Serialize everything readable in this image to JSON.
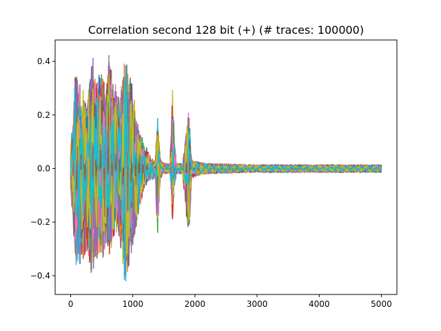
{
  "chart_data": {
    "type": "line",
    "title": "Correlation second 128 bit (+) (# traces: 100000)",
    "xlabel": "",
    "ylabel": "",
    "xlim": [
      -250,
      5250
    ],
    "ylim": [
      -0.47,
      0.48
    ],
    "x_ticks": [
      0,
      1000,
      2000,
      3000,
      4000,
      5000
    ],
    "x_tick_labels": [
      "0",
      "1000",
      "2000",
      "3000",
      "4000",
      "5000"
    ],
    "y_ticks": [
      -0.4,
      -0.2,
      0.0,
      0.2,
      0.4
    ],
    "y_tick_labels": [
      "−0.4",
      "−0.2",
      "0.0",
      "0.2",
      "0.4"
    ],
    "grid": false,
    "legend": "none",
    "n_samples": 5000,
    "series_colors": [
      "#1f77b4",
      "#ff7f0e",
      "#2ca02c",
      "#d62728",
      "#9467bd",
      "#8c564b",
      "#e377c2",
      "#7f7f7f",
      "#bcbd22",
      "#17becf"
    ],
    "envelope": {
      "x": [
        0,
        40,
        80,
        120,
        160,
        200,
        260,
        300,
        360,
        400,
        460,
        500,
        560,
        620,
        660,
        700,
        760,
        800,
        860,
        920,
        960,
        1000,
        1060,
        1100,
        1160,
        1200,
        1260,
        1300,
        1360,
        1400,
        1440,
        1500,
        1600,
        1640,
        1660,
        1700,
        1800,
        1900,
        1920,
        1940,
        2000,
        2200,
        3000,
        4000,
        5000
      ],
      "upper": [
        0.08,
        0.22,
        0.37,
        0.33,
        0.32,
        0.3,
        0.26,
        0.35,
        0.43,
        0.33,
        0.36,
        0.37,
        0.3,
        0.44,
        0.38,
        0.33,
        0.3,
        0.28,
        0.4,
        0.4,
        0.37,
        0.3,
        0.19,
        0.15,
        0.12,
        0.09,
        0.06,
        0.04,
        0.03,
        0.2,
        0.04,
        0.02,
        0.02,
        0.33,
        0.15,
        0.02,
        0.02,
        0.22,
        0.15,
        0.04,
        0.03,
        0.02,
        0.015,
        0.015,
        0.015
      ],
      "lower": [
        -0.08,
        -0.25,
        -0.38,
        -0.36,
        -0.36,
        -0.34,
        -0.3,
        -0.38,
        -0.41,
        -0.34,
        -0.33,
        -0.37,
        -0.29,
        -0.33,
        -0.3,
        -0.28,
        -0.25,
        -0.28,
        -0.42,
        -0.43,
        -0.35,
        -0.3,
        -0.22,
        -0.15,
        -0.1,
        -0.07,
        -0.05,
        -0.04,
        -0.04,
        -0.27,
        -0.04,
        -0.02,
        -0.02,
        -0.22,
        -0.1,
        -0.02,
        -0.02,
        -0.28,
        -0.2,
        -0.04,
        -0.03,
        -0.02,
        -0.015,
        -0.015,
        -0.015
      ]
    }
  }
}
